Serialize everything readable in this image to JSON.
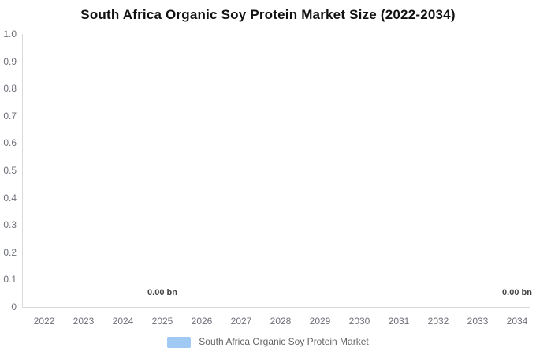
{
  "title": "South Africa Organic Soy Protein Market Size (2022-2034)",
  "colors": {
    "title": "#111111",
    "series": "#a0c9f4",
    "axis_line": "#d9d9d9",
    "axis_label": "#6e7079",
    "data_label": "#454545",
    "legend_text": "#666666",
    "background": "#ffffff"
  },
  "chart_data": {
    "type": "bar",
    "title": "South Africa Organic Soy Protein Market Size (2022-2034)",
    "categories": [
      "2022",
      "2023",
      "2024",
      "2025",
      "2026",
      "2027",
      "2028",
      "2029",
      "2030",
      "2031",
      "2032",
      "2033",
      "2034"
    ],
    "series": [
      {
        "name": "South Africa Organic Soy Protein Market",
        "values": [
          0.0,
          0.0,
          0.0,
          0.0,
          0.0,
          0.0,
          0.0,
          0.0,
          0.0,
          0.0,
          0.0,
          0.0,
          0.0
        ]
      }
    ],
    "data_labels": [
      {
        "category": "2025",
        "text": "0.00 bn"
      },
      {
        "category": "2034",
        "text": "0.00 bn"
      }
    ],
    "xlabel": "",
    "ylabel": "",
    "ylim": [
      0,
      1.0
    ],
    "y_ticks": [
      "1.0",
      "0.9",
      "0.8",
      "0.7",
      "0.6",
      "0.5",
      "0.4",
      "0.3",
      "0.2",
      "0.1",
      "0"
    ],
    "grid": false,
    "legend_position": "bottom",
    "legend": [
      "South Africa Organic Soy Protein Market"
    ]
  }
}
